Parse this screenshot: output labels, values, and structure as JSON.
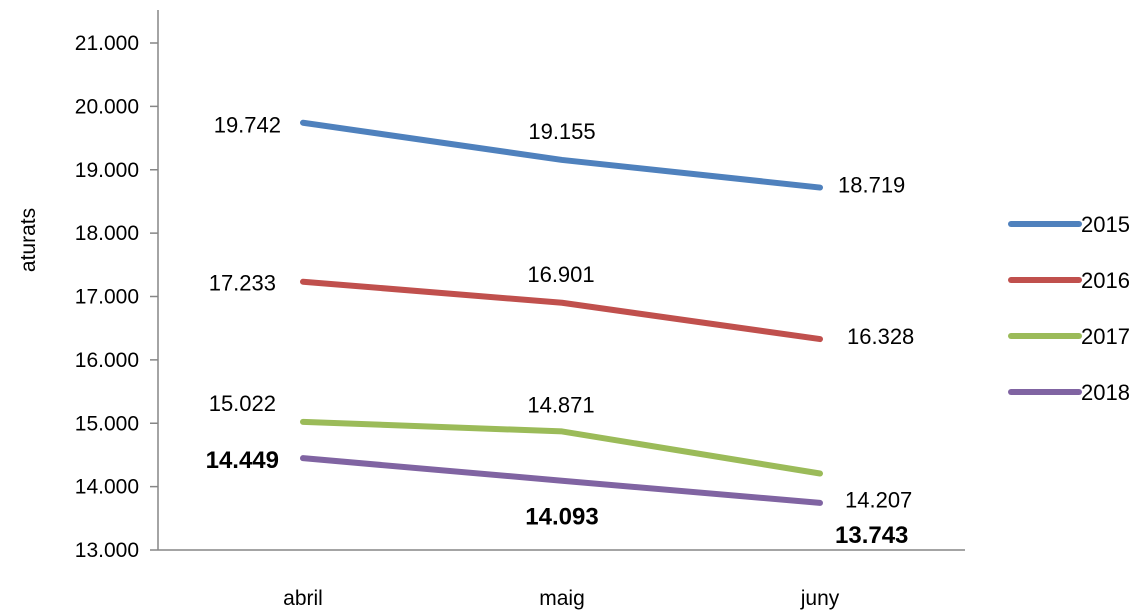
{
  "chart_data": {
    "type": "line",
    "title": "",
    "xlabel": "",
    "ylabel": "aturats",
    "categories": [
      "abril",
      "maig",
      "juny"
    ],
    "ylim": [
      13000,
      21000
    ],
    "yticks": [
      "13.000",
      "14.000",
      "15.000",
      "16.000",
      "17.000",
      "18.000",
      "19.000",
      "20.000",
      "21.000"
    ],
    "grid": false,
    "legend": "right",
    "series": [
      {
        "name": "2015",
        "color": "#4f81bd",
        "values": [
          19742,
          19155,
          18719
        ],
        "labels": [
          "19.742",
          "19.155",
          "18.719"
        ],
        "bold": false
      },
      {
        "name": "2016",
        "color": "#c0504d",
        "values": [
          17233,
          16901,
          16328
        ],
        "labels": [
          "17.233",
          "16.901",
          "16.328"
        ],
        "bold": false
      },
      {
        "name": "2017",
        "color": "#9bbb59",
        "values": [
          15022,
          14871,
          14207
        ],
        "labels": [
          "15.022",
          "14.871",
          "14.207"
        ],
        "bold": false
      },
      {
        "name": "2018",
        "color": "#8064a2",
        "values": [
          14449,
          14093,
          13743
        ],
        "labels": [
          "14.449",
          "14.093",
          "13.743"
        ],
        "bold": true
      }
    ]
  }
}
